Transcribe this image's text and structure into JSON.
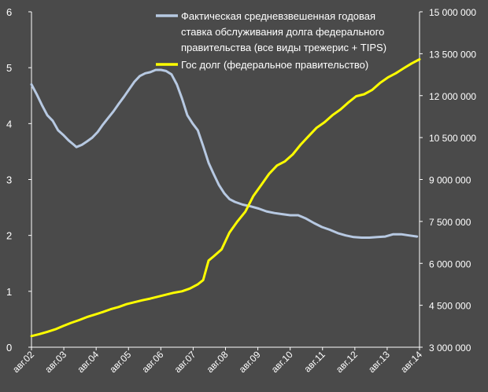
{
  "chart_data": {
    "type": "line",
    "title": "",
    "xlabel": "",
    "ylabel_left": "",
    "ylabel_right": "",
    "x_tick_labels": [
      "авг.02",
      "авг.03",
      "авг.04",
      "авг.05",
      "авг.06",
      "авг.07",
      "авг.08",
      "авг.09",
      "авг.10",
      "авг.11",
      "авг.12",
      "авг.13",
      "авг.14"
    ],
    "x_range": [
      2002.58,
      2014.83
    ],
    "y_left": {
      "range": [
        0,
        6
      ],
      "ticks": [
        "0",
        "1",
        "2",
        "3",
        "4",
        "5",
        "6"
      ]
    },
    "y_right": {
      "range": [
        3000000,
        15000000
      ],
      "ticks": [
        "3 000 000",
        "4 500 000",
        "6 000 000",
        "7 500 000",
        "9 000 000",
        "10 500 000",
        "12 000 000",
        "13 500 000",
        "15 000 000"
      ]
    },
    "grid": false,
    "legend_position": "top-right",
    "colors": {
      "background": "#4a4a4a",
      "rate": "#b7c9e2",
      "debt": "#ffff00",
      "axis": "#ffffff"
    },
    "series": [
      {
        "name": "Фактическая средневзвешенная годовая ставка обслуживания долга федерального правительства (все виды трежерис + TIPS)",
        "name_lines": [
          "Фактическая средневзвешенная годовая",
          "ставка обслуживания долга федерального",
          "правительства (все виды трежерис + TIPS)"
        ],
        "axis": "left",
        "color": "#b7c9e2",
        "points": [
          [
            2002.58,
            4.7
          ],
          [
            2002.75,
            4.52
          ],
          [
            2002.92,
            4.32
          ],
          [
            2003.08,
            4.15
          ],
          [
            2003.25,
            4.05
          ],
          [
            2003.42,
            3.88
          ],
          [
            2003.58,
            3.8
          ],
          [
            2003.75,
            3.7
          ],
          [
            2003.92,
            3.62
          ],
          [
            2004.0,
            3.58
          ],
          [
            2004.17,
            3.62
          ],
          [
            2004.33,
            3.68
          ],
          [
            2004.5,
            3.75
          ],
          [
            2004.67,
            3.85
          ],
          [
            2004.83,
            3.98
          ],
          [
            2005.0,
            4.1
          ],
          [
            2005.17,
            4.22
          ],
          [
            2005.33,
            4.35
          ],
          [
            2005.5,
            4.48
          ],
          [
            2005.67,
            4.62
          ],
          [
            2005.83,
            4.75
          ],
          [
            2006.0,
            4.85
          ],
          [
            2006.17,
            4.9
          ],
          [
            2006.33,
            4.92
          ],
          [
            2006.5,
            4.96
          ],
          [
            2006.67,
            4.96
          ],
          [
            2006.83,
            4.94
          ],
          [
            2007.0,
            4.88
          ],
          [
            2007.17,
            4.7
          ],
          [
            2007.33,
            4.45
          ],
          [
            2007.5,
            4.15
          ],
          [
            2007.67,
            4.0
          ],
          [
            2007.83,
            3.88
          ],
          [
            2008.0,
            3.6
          ],
          [
            2008.17,
            3.3
          ],
          [
            2008.33,
            3.1
          ],
          [
            2008.5,
            2.9
          ],
          [
            2008.67,
            2.75
          ],
          [
            2008.83,
            2.65
          ],
          [
            2009.0,
            2.6
          ],
          [
            2009.25,
            2.55
          ],
          [
            2009.5,
            2.52
          ],
          [
            2009.75,
            2.48
          ],
          [
            2010.0,
            2.43
          ],
          [
            2010.25,
            2.4
          ],
          [
            2010.5,
            2.38
          ],
          [
            2010.75,
            2.36
          ],
          [
            2011.0,
            2.36
          ],
          [
            2011.25,
            2.3
          ],
          [
            2011.5,
            2.22
          ],
          [
            2011.75,
            2.15
          ],
          [
            2012.0,
            2.1
          ],
          [
            2012.25,
            2.04
          ],
          [
            2012.5,
            2.0
          ],
          [
            2012.75,
            1.97
          ],
          [
            2013.0,
            1.96
          ],
          [
            2013.25,
            1.96
          ],
          [
            2013.5,
            1.97
          ],
          [
            2013.75,
            1.98
          ],
          [
            2014.0,
            2.02
          ],
          [
            2014.25,
            2.02
          ],
          [
            2014.5,
            2.0
          ],
          [
            2014.75,
            1.98
          ]
        ]
      },
      {
        "name": "Гос долг (федеральное правительство)",
        "name_lines": [
          "Гос долг (федеральное правительство)"
        ],
        "axis": "right",
        "color": "#ffff00",
        "points": [
          [
            2002.58,
            3400000
          ],
          [
            2002.83,
            3470000
          ],
          [
            2003.08,
            3550000
          ],
          [
            2003.33,
            3640000
          ],
          [
            2003.58,
            3760000
          ],
          [
            2003.83,
            3870000
          ],
          [
            2004.08,
            3970000
          ],
          [
            2004.33,
            4080000
          ],
          [
            2004.58,
            4170000
          ],
          [
            2004.83,
            4260000
          ],
          [
            2005.08,
            4360000
          ],
          [
            2005.33,
            4440000
          ],
          [
            2005.58,
            4540000
          ],
          [
            2005.83,
            4610000
          ],
          [
            2006.08,
            4680000
          ],
          [
            2006.33,
            4740000
          ],
          [
            2006.58,
            4810000
          ],
          [
            2006.83,
            4880000
          ],
          [
            2007.08,
            4950000
          ],
          [
            2007.33,
            5000000
          ],
          [
            2007.58,
            5100000
          ],
          [
            2007.83,
            5250000
          ],
          [
            2008.0,
            5400000
          ],
          [
            2008.17,
            6100000
          ],
          [
            2008.33,
            6250000
          ],
          [
            2008.58,
            6500000
          ],
          [
            2008.83,
            7100000
          ],
          [
            2009.08,
            7500000
          ],
          [
            2009.33,
            7850000
          ],
          [
            2009.58,
            8400000
          ],
          [
            2009.83,
            8800000
          ],
          [
            2010.08,
            9200000
          ],
          [
            2010.33,
            9500000
          ],
          [
            2010.58,
            9650000
          ],
          [
            2010.83,
            9900000
          ],
          [
            2011.08,
            10250000
          ],
          [
            2011.33,
            10550000
          ],
          [
            2011.58,
            10850000
          ],
          [
            2011.83,
            11050000
          ],
          [
            2012.08,
            11300000
          ],
          [
            2012.33,
            11500000
          ],
          [
            2012.58,
            11750000
          ],
          [
            2012.83,
            11980000
          ],
          [
            2013.08,
            12050000
          ],
          [
            2013.33,
            12200000
          ],
          [
            2013.58,
            12450000
          ],
          [
            2013.83,
            12650000
          ],
          [
            2014.08,
            12800000
          ],
          [
            2014.33,
            12980000
          ],
          [
            2014.58,
            13150000
          ],
          [
            2014.83,
            13300000
          ]
        ]
      }
    ]
  }
}
